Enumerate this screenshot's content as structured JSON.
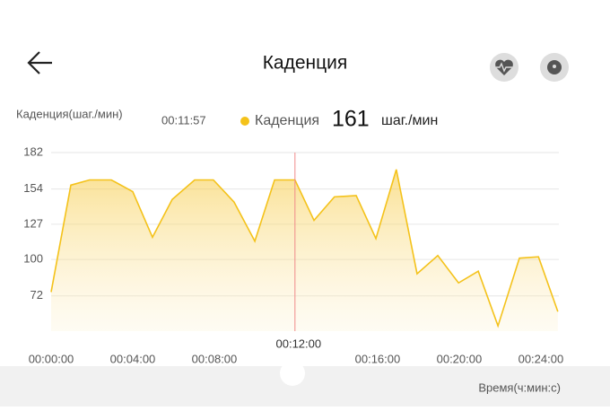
{
  "header": {
    "title": "Каденция"
  },
  "chart_data": {
    "type": "line",
    "y_label": "Каденция(шаг./мин)",
    "x_label": "Время(ч:мин:с)",
    "readout": {
      "time": "00:11:57",
      "series_name": "Каденция",
      "value": 161,
      "unit": "шаг./мин"
    },
    "cursor": {
      "x": 717,
      "label": "00:12:00"
    },
    "x": [
      0,
      58,
      113,
      177,
      240,
      298,
      356,
      422,
      477,
      538,
      599,
      657,
      717,
      773,
      833,
      897,
      955,
      1015,
      1076,
      1137,
      1198,
      1256,
      1314,
      1377,
      1433,
      1490
    ],
    "series": [
      {
        "name": "Каденция",
        "color": "#f4c21a",
        "values": [
          75,
          157,
          161,
          161,
          152,
          117,
          146,
          161,
          161,
          144,
          114,
          161,
          161,
          130,
          148,
          149,
          116,
          169,
          89,
          103,
          82,
          91,
          49,
          101,
          102,
          60
        ]
      }
    ],
    "xlim": [
      0,
      1493
    ],
    "ylim": [
      45,
      182
    ],
    "yticks": [
      72,
      100,
      127,
      154,
      182
    ],
    "xticks": [
      {
        "value": 0,
        "label": "00:00:00"
      },
      {
        "value": 240,
        "label": "00:04:00"
      },
      {
        "value": 480,
        "label": "00:08:00"
      },
      {
        "value": 960,
        "label": "00:16:00"
      },
      {
        "value": 1200,
        "label": "00:20:00"
      },
      {
        "value": 1440,
        "label": "00:24:00"
      }
    ],
    "grid": true
  }
}
